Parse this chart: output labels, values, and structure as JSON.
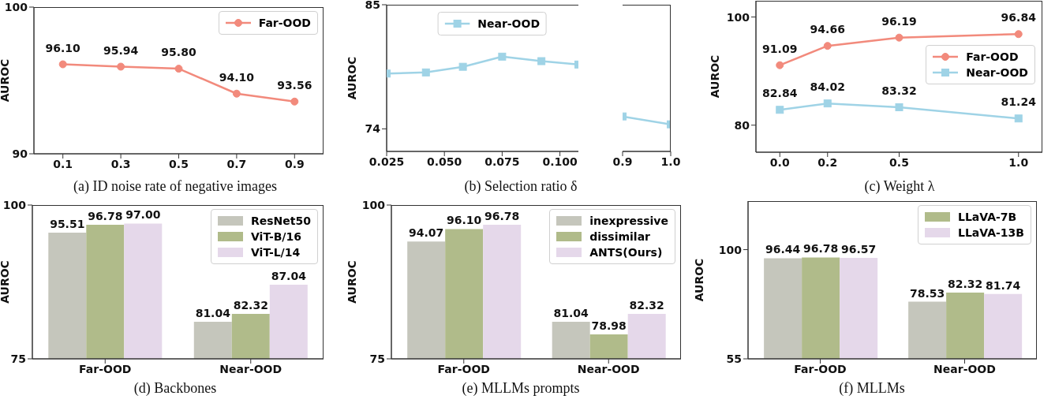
{
  "chart_data": [
    {
      "type": "line",
      "xlabel": "(a) ID noise rate of negative images",
      "ylabel": "AUROC",
      "x": [
        0.1,
        0.3,
        0.5,
        0.7,
        0.9
      ],
      "xlim": [
        0,
        1
      ],
      "xticks": [
        0.1,
        0.3,
        0.5,
        0.7,
        0.9
      ],
      "ylim": [
        90,
        100
      ],
      "yticks": [
        90,
        100
      ],
      "legend": "top right",
      "series": [
        {
          "name": "Far-OOD",
          "color": "#f28a7c",
          "marker": "circle",
          "line_style": "solid",
          "values": [
            96.1,
            95.94,
            95.8,
            94.1,
            93.56
          ],
          "value_labels": [
            "96.10",
            "95.94",
            "95.80",
            "94.10",
            "93.56"
          ]
        }
      ]
    },
    {
      "type": "line",
      "xlabel": "(b) Selection ratio δ",
      "ylabel": "AUROC",
      "x": [
        0.025,
        0.042,
        0.058,
        0.075,
        0.092,
        0.108
      ],
      "xlim": [
        0.025,
        0.108
      ],
      "xticks": [
        0.025,
        {
          "value": 0.05,
          "label": "0.050"
        },
        0.075,
        {
          "value": 0.1,
          "label": "0.100"
        }
      ],
      "ylim": [
        72,
        85
      ],
      "yticks": [
        74,
        85
      ],
      "legend": "top",
      "series": [
        {
          "name": "Near-OOD",
          "color": "#9fd3e6",
          "marker": "square",
          "line_style": "solid",
          "values": [
            78.9,
            79.0,
            79.5,
            80.4,
            80.0,
            79.7
          ]
        }
      ]
    },
    {
      "type": "line",
      "x": [
        0.9,
        1.0
      ],
      "xlim": [
        0.9,
        1.0
      ],
      "xticks": [
        0.9,
        {
          "value": 1,
          "label": "1.0"
        }
      ],
      "ylim": [
        72,
        85
      ],
      "tick_labels": "x",
      "series": [
        {
          "color": "#9fd3e6",
          "marker": "square",
          "line_style": "solid",
          "values": [
            75.1,
            74.4
          ]
        }
      ]
    },
    {
      "type": "line",
      "xlabel": "(c) Weight λ",
      "ylabel": "AUROC",
      "x": [
        0,
        0.2,
        0.5,
        1
      ],
      "xlim": [
        -0.1,
        1.1
      ],
      "xticks": [
        {
          "value": 0,
          "label": "0.0"
        },
        0.2,
        0.5,
        {
          "value": 1,
          "label": "1.0"
        }
      ],
      "ylim": [
        75,
        103
      ],
      "yticks": [
        80,
        100
      ],
      "legend": "right",
      "series": [
        {
          "name": "Far-OOD",
          "color": "#f28a7c",
          "marker": "circle",
          "line_style": "solid",
          "values": [
            91.09,
            94.66,
            96.19,
            96.84
          ],
          "value_labels": [
            "91.09",
            "94.66",
            "96.19",
            "96.84"
          ]
        },
        {
          "name": "Near-OOD",
          "color": "#9fd3e6",
          "marker": "square",
          "line_style": "solid",
          "values": [
            82.84,
            84.02,
            83.32,
            81.24
          ],
          "value_labels": [
            "82.84",
            "84.02",
            "83.32",
            "81.24"
          ]
        }
      ]
    },
    {
      "type": "bar",
      "xlabel": "(d) Backbones",
      "ylabel": "AUROC",
      "categories": [
        "Far-OOD",
        "Near-OOD"
      ],
      "ylim": [
        75,
        100
      ],
      "yticks": [
        75,
        100
      ],
      "legend": "top right",
      "series": [
        {
          "name": "ResNet50",
          "color": "#c5c6bc",
          "values": [
            95.51,
            81.04
          ],
          "value_labels": [
            "95.51",
            "81.04"
          ]
        },
        {
          "name": "ViT-B/16",
          "color": "#b0bb8a",
          "values": [
            96.78,
            82.32
          ],
          "value_labels": [
            "96.78",
            "82.32"
          ]
        },
        {
          "name": "ViT-L/14",
          "color": "#e5d8ea",
          "values": [
            97.0,
            87.04
          ],
          "value_labels": [
            "97.00",
            "87.04"
          ]
        }
      ]
    },
    {
      "type": "bar",
      "xlabel": "(e) MLLMs prompts",
      "ylabel": "AUROC",
      "categories": [
        "Far-OOD",
        "Near-OOD"
      ],
      "ylim": [
        75,
        100
      ],
      "yticks": [
        75,
        100
      ],
      "legend": "top right",
      "series": [
        {
          "name": "inexpressive",
          "color": "#c5c6bc",
          "values": [
            94.07,
            81.04
          ],
          "value_labels": [
            "94.07",
            "81.04"
          ]
        },
        {
          "name": "dissimilar",
          "color": "#b0bb8a",
          "values": [
            96.1,
            78.98
          ],
          "value_labels": [
            "96.10",
            "78.98"
          ]
        },
        {
          "name": "ANTS(Ours)",
          "color": "#e5d8ea",
          "values": [
            96.78,
            82.32
          ],
          "value_labels": [
            "96.78",
            "82.32"
          ]
        }
      ]
    },
    {
      "type": "bar",
      "xlabel": "(f) MLLMs",
      "ylabel": "AUROC",
      "categories": [
        "Far-OOD",
        "Near-OOD"
      ],
      "ylim": [
        55,
        120
      ],
      "yticks": [
        55,
        100
      ],
      "legend": "top right",
      "series": [
        {
          "color": "#c5c6bc",
          "values": [
            96.44,
            78.53
          ],
          "value_labels": [
            "96.44",
            "78.53"
          ]
        },
        {
          "name": "LLaVA-7B",
          "color": "#b0bb8a",
          "values": [
            96.78,
            82.32
          ],
          "value_labels": [
            "96.78",
            "82.32"
          ]
        },
        {
          "name": "LLaVA-13B",
          "color": "#e5d8ea",
          "values": [
            96.57,
            81.74
          ],
          "value_labels": [
            "96.57",
            "81.74"
          ]
        }
      ]
    }
  ]
}
